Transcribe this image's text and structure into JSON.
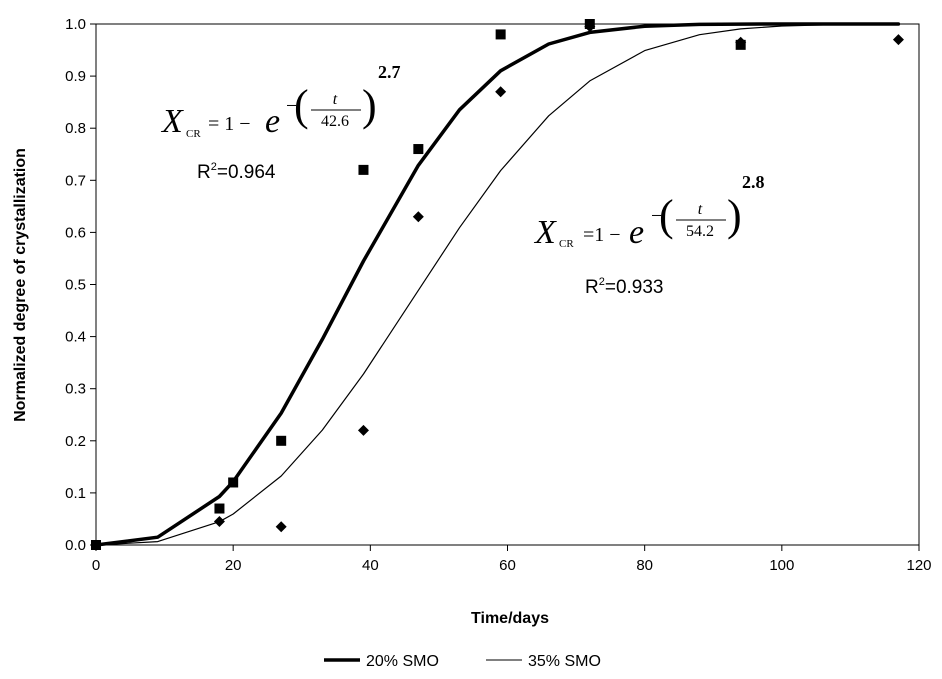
{
  "chart_data": {
    "type": "scatter",
    "xlabel": "Time/days",
    "ylabel": "Normalized degree of crystallization",
    "xlim": [
      0,
      120
    ],
    "ylim": [
      0,
      1.0
    ],
    "xticks": [
      "0",
      "20",
      "40",
      "60",
      "80",
      "100",
      "120"
    ],
    "yticks": [
      "0.0",
      "0.1",
      "0.2",
      "0.3",
      "0.4",
      "0.5",
      "0.6",
      "0.7",
      "0.8",
      "0.9",
      "1.0"
    ],
    "grid": false,
    "legend_position": "bottom",
    "series": [
      {
        "name": "20% SMO",
        "marker": "square",
        "line_weight": "thick",
        "points": [
          [
            0,
            0.0
          ],
          [
            18,
            0.07
          ],
          [
            20,
            0.12
          ],
          [
            27,
            0.2
          ],
          [
            39,
            0.72
          ],
          [
            47,
            0.76
          ],
          [
            59,
            0.98
          ],
          [
            72,
            1.0
          ],
          [
            94,
            0.96
          ]
        ],
        "fit": {
          "tau": 42.6,
          "n": 2.7,
          "r2": "R2=0.964"
        }
      },
      {
        "name": "35% SMO",
        "marker": "diamond",
        "line_weight": "thin",
        "points": [
          [
            0,
            0.0
          ],
          [
            18,
            0.045
          ],
          [
            27,
            0.035
          ],
          [
            39,
            0.22
          ],
          [
            47,
            0.63
          ],
          [
            59,
            0.87
          ],
          [
            72,
            0.995
          ],
          [
            94,
            0.965
          ],
          [
            117,
            0.97
          ]
        ],
        "fit": {
          "tau": 54.2,
          "n": 2.8,
          "r2": "R2=0.933"
        }
      }
    ],
    "annotations": {
      "eq1": {
        "lhs": "X",
        "sub": "CR",
        "mid": "= 1 −",
        "e": "e",
        "num": "t",
        "den": "42.6",
        "exp": "2.7",
        "r2_prefix": "R",
        "r2_sup": "2",
        "r2_value": "=0.964"
      },
      "eq2": {
        "lhs": "X",
        "sub": "CR",
        "mid": "=1 −",
        "e": "e",
        "num": "t",
        "den": "54.2",
        "exp": "2.8",
        "r2_prefix": "R",
        "r2_sup": "2",
        "r2_value": "=0.933"
      }
    },
    "legend": [
      "20% SMO",
      "35% SMO"
    ]
  }
}
